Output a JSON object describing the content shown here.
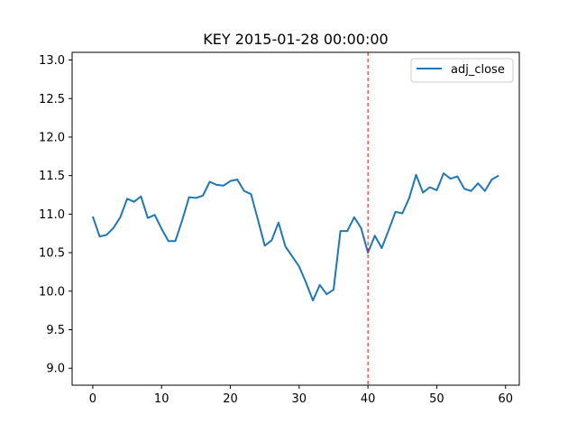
{
  "chart_data": {
    "type": "line",
    "title": "KEY 2015-01-28 00:00:00",
    "xlabel": "",
    "ylabel": "",
    "xlim": [
      -3,
      62
    ],
    "ylim": [
      8.78,
      13.1
    ],
    "x_ticks": [
      0,
      10,
      20,
      30,
      40,
      50,
      60
    ],
    "y_ticks": [
      9.0,
      9.5,
      10.0,
      10.5,
      11.0,
      11.5,
      12.0,
      12.5,
      13.0
    ],
    "x_tick_labels": [
      "0",
      "10",
      "20",
      "30",
      "40",
      "50",
      "60"
    ],
    "y_tick_labels": [
      "9.0",
      "9.5",
      "10.0",
      "10.5",
      "11.0",
      "11.5",
      "12.0",
      "12.5",
      "13.0"
    ],
    "grid": false,
    "legend_position": "top-right",
    "series": [
      {
        "name": "adj_close",
        "color": "#1f77b4",
        "x": [
          0,
          1,
          2,
          3,
          4,
          5,
          6,
          7,
          8,
          9,
          10,
          11,
          12,
          13,
          14,
          15,
          16,
          17,
          18,
          19,
          20,
          21,
          22,
          23,
          24,
          25,
          26,
          27,
          28,
          29,
          30,
          31,
          32,
          33,
          34,
          35,
          36,
          37,
          38,
          39,
          40,
          41,
          42,
          43,
          44,
          45,
          46,
          47,
          48,
          49,
          50,
          51,
          52,
          53,
          54,
          55,
          56,
          57,
          58,
          59
        ],
        "values": [
          10.97,
          10.71,
          10.73,
          10.82,
          10.96,
          11.2,
          11.16,
          11.23,
          10.95,
          10.99,
          10.81,
          10.65,
          10.65,
          10.92,
          11.22,
          11.21,
          11.24,
          11.42,
          11.38,
          11.37,
          11.43,
          11.45,
          11.3,
          11.26,
          10.93,
          10.59,
          10.66,
          10.89,
          10.58,
          10.45,
          10.32,
          10.11,
          9.88,
          10.08,
          9.96,
          10.02,
          10.78,
          10.78,
          10.96,
          10.82,
          10.5,
          10.72,
          10.56,
          10.79,
          11.03,
          11.01,
          11.21,
          11.51,
          11.28,
          11.35,
          11.31,
          11.53,
          11.46,
          11.49,
          11.33,
          11.3,
          11.4,
          11.3,
          11.45,
          11.5
        ]
      }
    ],
    "annotations": [
      {
        "type": "vline",
        "x": 40,
        "color": "#ff0000",
        "style": "dashed"
      }
    ]
  }
}
